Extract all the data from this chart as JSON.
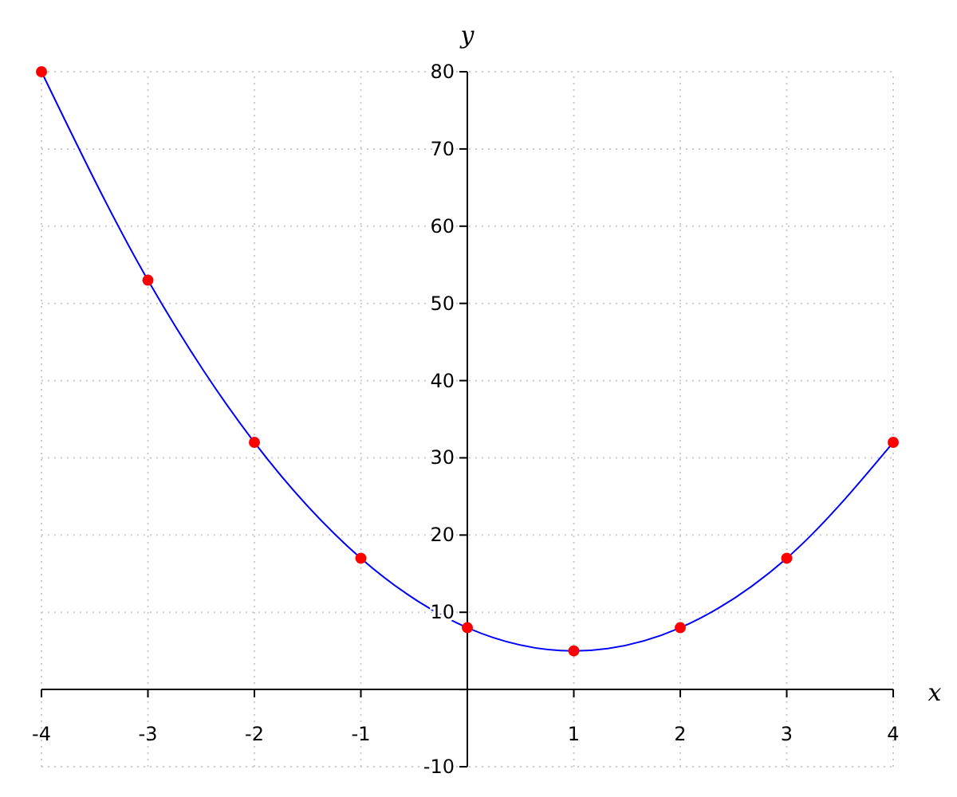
{
  "chart_data": {
    "type": "line",
    "xlabel": "x",
    "ylabel": "y",
    "x": [
      -4,
      -3,
      -2,
      -1,
      0,
      1,
      2,
      3,
      4
    ],
    "series": [
      {
        "color": "#0000ff",
        "marker": "none",
        "values": [
          80,
          53,
          32,
          17,
          8,
          5,
          8,
          17,
          32
        ]
      },
      {
        "type": "scatter",
        "color": "#ff0000",
        "marker": "circle",
        "values": [
          80,
          53,
          32,
          17,
          8,
          5,
          8,
          17,
          32
        ]
      }
    ],
    "xlim": [
      -4,
      4
    ],
    "ylim": [
      -10,
      80
    ],
    "xticks": [
      -4,
      -3,
      -2,
      -1,
      1,
      2,
      3,
      4
    ],
    "yticks": [
      -10,
      {
        "value": 0,
        "label": null
      },
      10,
      20,
      30,
      40,
      50,
      60,
      70,
      80
    ],
    "grid": true
  }
}
